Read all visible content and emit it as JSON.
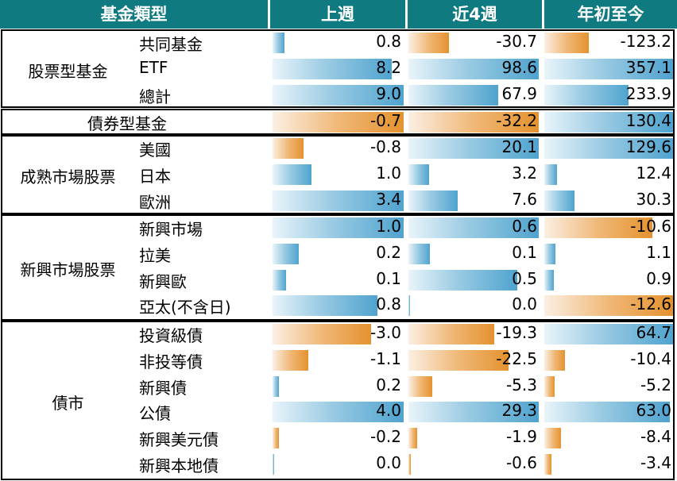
{
  "header": {
    "category": "基金類型",
    "col_week": "上週",
    "col_4w": "近4週",
    "col_ytd": "年初至今"
  },
  "colors": {
    "header_bg": "#0f7a80",
    "positive": "#4fa3cf",
    "negative": "#e4922f"
  },
  "chart_data": {
    "type": "table",
    "columns": [
      "上週",
      "近4週",
      "年初至今"
    ],
    "groups": [
      {
        "name": "股票型基金",
        "rows": [
          {
            "label": "共同基金",
            "values": [
              "0.8",
              "-30.7",
              "-123.2"
            ]
          },
          {
            "label": "ETF",
            "values": [
              "8.2",
              "98.6",
              "357.1"
            ]
          },
          {
            "label": "總計",
            "values": [
              "9.0",
              "67.9",
              "233.9"
            ]
          }
        ]
      },
      {
        "name": "債券型基金",
        "rows": [
          {
            "label": "",
            "values": [
              "-0.7",
              "-32.2",
              "130.4"
            ]
          }
        ]
      },
      {
        "name": "成熟市場股票",
        "rows": [
          {
            "label": "美國",
            "values": [
              "-0.8",
              "20.1",
              "129.6"
            ]
          },
          {
            "label": "日本",
            "values": [
              "1.0",
              "3.2",
              "12.4"
            ]
          },
          {
            "label": "歐洲",
            "values": [
              "3.4",
              "7.6",
              "30.3"
            ]
          }
        ]
      },
      {
        "name": "新興市場股票",
        "rows": [
          {
            "label": "新興市場",
            "values": [
              "1.0",
              "0.6",
              "-10.6"
            ]
          },
          {
            "label": "拉美",
            "values": [
              "0.2",
              "0.1",
              "1.1"
            ]
          },
          {
            "label": "新興歐",
            "values": [
              "0.1",
              "0.5",
              "0.9"
            ]
          },
          {
            "label": "亞太(不含日)",
            "values": [
              "0.8",
              "0.0",
              "-12.6"
            ]
          }
        ]
      },
      {
        "name": "債市",
        "rows": [
          {
            "label": "投資級債",
            "values": [
              "-3.0",
              "-19.3",
              "64.7"
            ]
          },
          {
            "label": "非投等債",
            "values": [
              "-1.1",
              "-22.5",
              "-10.4"
            ]
          },
          {
            "label": "新興債",
            "values": [
              "0.2",
              "-5.3",
              "-5.2"
            ]
          },
          {
            "label": "公債",
            "values": [
              "4.0",
              "29.3",
              "63.0"
            ]
          },
          {
            "label": "新興美元債",
            "values": [
              "-0.2",
              "-1.9",
              "-8.4"
            ]
          },
          {
            "label": "新興本地債",
            "values": [
              "0.0",
              "-0.6",
              "-3.4"
            ]
          }
        ]
      }
    ]
  }
}
